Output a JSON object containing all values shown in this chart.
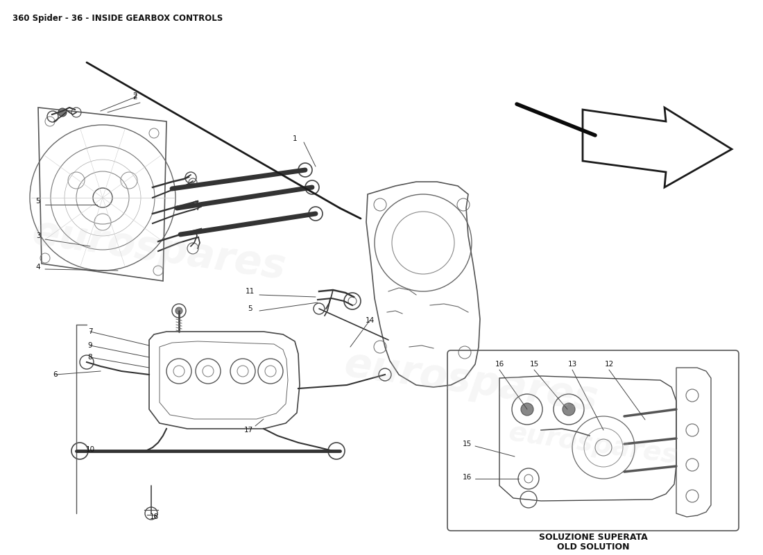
{
  "title": "360 Spider - 36 - INSIDE GEARBOX CONTROLS",
  "title_fontsize": 8.5,
  "title_color": "#111111",
  "background_color": "#ffffff",
  "watermark_text": "eurospares",
  "watermark_alpha": 0.18,
  "watermark_fontsize": 42,
  "part_fontsize": 7.5,
  "line_color": "#333333",
  "light_line_color": "#555555",
  "annotation_line_color": "#444444",
  "inset_label_line1": "SOLUZIONE SUPERATA",
  "inset_label_line2": "OLD SOLUTION",
  "arrow_outline_color": "#ffffff",
  "arrow_fill_color": "#111111"
}
